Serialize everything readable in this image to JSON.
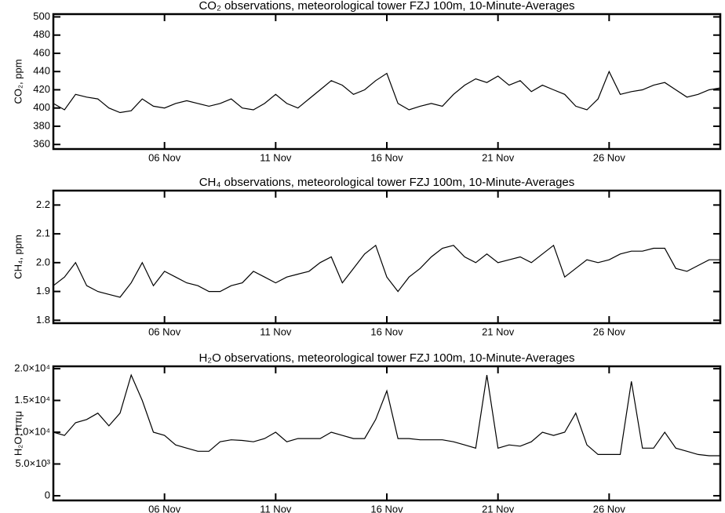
{
  "chart_data": [
    {
      "type": "line",
      "title": "CO₂ observations, meteorological tower FZJ 100m, 10-Minute-Averages",
      "ylabel": "CO₂, ppm",
      "color": "#000000",
      "x": [
        1,
        1.5,
        2,
        2.5,
        3,
        3.5,
        4,
        4.5,
        5,
        5.5,
        6,
        6.5,
        7,
        7.5,
        8,
        8.5,
        9,
        9.5,
        10,
        10.5,
        11,
        11.5,
        12,
        12.5,
        13,
        13.5,
        14,
        14.5,
        15,
        15.5,
        16,
        16.5,
        17,
        17.5,
        18,
        18.5,
        19,
        19.5,
        20,
        20.5,
        21,
        21.5,
        22,
        22.5,
        23,
        23.5,
        24,
        24.5,
        25,
        25.5,
        26,
        26.5,
        27,
        27.5,
        28,
        28.5,
        29,
        29.5,
        30,
        30.5,
        31
      ],
      "values": [
        405,
        398,
        415,
        412,
        410,
        400,
        395,
        397,
        410,
        402,
        400,
        405,
        408,
        405,
        402,
        405,
        410,
        400,
        398,
        405,
        415,
        405,
        400,
        410,
        420,
        430,
        425,
        415,
        420,
        430,
        438,
        405,
        398,
        402,
        405,
        402,
        415,
        425,
        432,
        428,
        435,
        425,
        430,
        418,
        425,
        420,
        415,
        402,
        398,
        410,
        440,
        415,
        418,
        420,
        425,
        428,
        420,
        412,
        415,
        420,
        422
      ],
      "xlim": [
        1,
        31
      ],
      "xticks": [
        {
          "value": 6,
          "label": "06 Nov"
        },
        {
          "value": 11,
          "label": "11 Nov"
        },
        {
          "value": 16,
          "label": "16 Nov"
        },
        {
          "value": 21,
          "label": "21 Nov"
        },
        {
          "value": 26,
          "label": "26 Nov"
        }
      ],
      "ylim": [
        355,
        503
      ],
      "yticks": [
        360,
        380,
        400,
        420,
        440,
        460,
        480,
        500
      ]
    },
    {
      "type": "line",
      "title": "CH₄ observations, meteorological tower FZJ 100m, 10-Minute-Averages",
      "ylabel": "CH₄, ppm",
      "color": "#000000",
      "x": [
        1,
        1.5,
        2,
        2.5,
        3,
        3.5,
        4,
        4.5,
        5,
        5.5,
        6,
        6.5,
        7,
        7.5,
        8,
        8.5,
        9,
        9.5,
        10,
        10.5,
        11,
        11.5,
        12,
        12.5,
        13,
        13.5,
        14,
        14.5,
        15,
        15.5,
        16,
        16.5,
        17,
        17.5,
        18,
        18.5,
        19,
        19.5,
        20,
        20.5,
        21,
        21.5,
        22,
        22.5,
        23,
        23.5,
        24,
        24.5,
        25,
        25.5,
        26,
        26.5,
        27,
        27.5,
        28,
        28.5,
        29,
        29.5,
        30,
        30.5,
        31
      ],
      "values": [
        1.92,
        1.95,
        2.0,
        1.92,
        1.9,
        1.89,
        1.88,
        1.93,
        2.0,
        1.92,
        1.97,
        1.95,
        1.93,
        1.92,
        1.9,
        1.9,
        1.92,
        1.93,
        1.97,
        1.95,
        1.93,
        1.95,
        1.96,
        1.97,
        2.0,
        2.02,
        1.93,
        1.98,
        2.03,
        2.06,
        1.95,
        1.9,
        1.95,
        1.98,
        2.02,
        2.05,
        2.06,
        2.02,
        2.0,
        2.03,
        2.0,
        2.01,
        2.02,
        2.0,
        2.03,
        2.06,
        1.95,
        1.98,
        2.01,
        2.0,
        2.01,
        2.03,
        2.04,
        2.04,
        2.05,
        2.05,
        1.98,
        1.97,
        1.99,
        2.01,
        2.01
      ],
      "xlim": [
        1,
        31
      ],
      "xticks": [
        {
          "value": 6,
          "label": "06 Nov"
        },
        {
          "value": 11,
          "label": "11 Nov"
        },
        {
          "value": 16,
          "label": "16 Nov"
        },
        {
          "value": 21,
          "label": "21 Nov"
        },
        {
          "value": 26,
          "label": "26 Nov"
        }
      ],
      "ylim": [
        1.79,
        2.25
      ],
      "yticks": [
        1.8,
        1.9,
        {
          "value": 2,
          "label": "2.0"
        },
        2.1,
        2.2
      ]
    },
    {
      "type": "line",
      "title": "H₂O observations, meteorological tower FZJ 100m, 10-Minute-Averages",
      "ylabel": "H₂O, ππμ",
      "color": "#000000",
      "x": [
        1,
        1.5,
        2,
        2.5,
        3,
        3.5,
        4,
        4.5,
        5,
        5.5,
        6,
        6.5,
        7,
        7.5,
        8,
        8.5,
        9,
        9.5,
        10,
        10.5,
        11,
        11.5,
        12,
        12.5,
        13,
        13.5,
        14,
        14.5,
        15,
        15.5,
        16,
        16.5,
        17,
        17.5,
        18,
        18.5,
        19,
        19.5,
        20,
        20.5,
        21,
        21.5,
        22,
        22.5,
        23,
        23.5,
        24,
        24.5,
        25,
        25.5,
        26,
        26.5,
        27,
        27.5,
        28,
        28.5,
        29,
        29.5,
        30,
        30.5,
        31
      ],
      "values": [
        10000,
        9500,
        11500,
        12000,
        13000,
        11000,
        13000,
        19000,
        15000,
        10000,
        9500,
        8000,
        7500,
        7000,
        7000,
        8500,
        8800,
        8700,
        8500,
        9000,
        10000,
        8500,
        9000,
        9000,
        9000,
        10000,
        9500,
        9000,
        9000,
        12000,
        16500,
        9000,
        9000,
        8800,
        8800,
        8800,
        8500,
        8000,
        7500,
        19000,
        7500,
        8000,
        7800,
        8500,
        10000,
        9500,
        10000,
        13000,
        8000,
        6500,
        6500,
        6500,
        18000,
        7500,
        7500,
        10000,
        7500,
        7000,
        6500,
        6300,
        6300
      ],
      "xlim": [
        1,
        31
      ],
      "xticks": [
        {
          "value": 6,
          "label": "06 Nov"
        },
        {
          "value": 11,
          "label": "11 Nov"
        },
        {
          "value": 16,
          "label": "16 Nov"
        },
        {
          "value": 21,
          "label": "21 Nov"
        },
        {
          "value": 26,
          "label": "26 Nov"
        }
      ],
      "ylim": [
        -740,
        20370
      ],
      "yticks": [
        0,
        {
          "value": 5000,
          "label": "5.0×10³"
        },
        {
          "value": 10000,
          "label": "1.0×10⁴"
        },
        {
          "value": 15000,
          "label": "1.5×10⁴"
        },
        {
          "value": 20000,
          "label": "2.0×10⁴"
        }
      ]
    }
  ]
}
